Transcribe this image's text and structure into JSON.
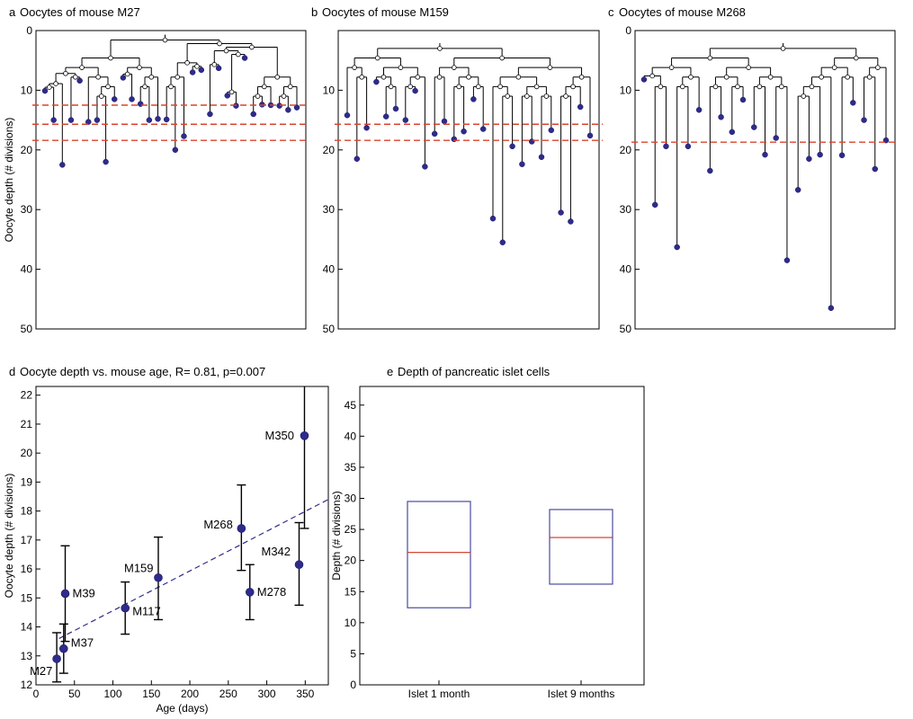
{
  "colors": {
    "dot": "#2e2b8a",
    "dot_edge": "#1c1a6b",
    "cyan": "#2aa6d6",
    "threshold": "#d9442b",
    "fit_line": "#2e2b8a",
    "box_edge": "#4a4aa0",
    "median": "#d0301e"
  },
  "chart_data": [
    {
      "panel": "a",
      "type": "tree",
      "letter": "a",
      "title": "Oocytes of mouse M27",
      "ylabel": "Oocyte depth (# divisions)",
      "ylim": [
        0,
        50
      ],
      "yticks": [
        "0",
        "10",
        "20",
        "30",
        "40",
        "50"
      ],
      "thresholds": [
        12.5,
        15.7,
        18.4
      ],
      "leaf_depths": [
        10.1,
        15.0,
        22.5,
        15.0,
        8.4,
        15.3,
        15.0,
        22.0,
        11.5,
        7.9,
        11.5,
        12.3,
        15.0,
        14.8,
        14.9,
        20.0,
        17.7,
        7.0,
        6.6,
        14.0,
        6.3,
        10.9,
        12.6,
        4.6,
        14.0,
        12.4,
        12.5,
        12.6,
        13.3,
        12.9
      ]
    },
    {
      "panel": "b",
      "type": "tree",
      "letter": "b",
      "title": "Oocytes of mouse M159",
      "ylim": [
        0,
        50
      ],
      "yticks": [
        "10",
        "20",
        "30",
        "40",
        "50"
      ],
      "thresholds": [
        15.7,
        18.4
      ],
      "leaf_depths": [
        14.2,
        21.5,
        16.3,
        8.6,
        14.4,
        13.1,
        15.0,
        10.1,
        22.8,
        17.3,
        15.2,
        18.2,
        16.9,
        11.5,
        16.5,
        31.5,
        35.5,
        19.4,
        22.4,
        18.6,
        21.2,
        16.7,
        30.5,
        32.0,
        12.8,
        17.6
      ]
    },
    {
      "panel": "c",
      "type": "tree",
      "letter": "c",
      "title": "Oocytes of mouse M268",
      "ylim": [
        0,
        50
      ],
      "yticks": [
        "0",
        "10",
        "20",
        "30",
        "40",
        "50"
      ],
      "thresholds": [
        18.7
      ],
      "leaf_depths": [
        8.2,
        29.2,
        19.4,
        36.3,
        19.4,
        13.3,
        23.5,
        14.5,
        17.0,
        11.6,
        16.2,
        20.8,
        18.0,
        38.5,
        26.7,
        21.5,
        20.8,
        46.5,
        20.9,
        12.1,
        15.0,
        23.2,
        18.4
      ]
    },
    {
      "panel": "d",
      "type": "scatter",
      "letter": "d",
      "title": "Oocyte depth vs. mouse age, R= 0.81, p=0.007",
      "xlabel": "Age (days)",
      "ylabel": "Oocyte depth (# divisions)",
      "xlim": [
        0,
        380
      ],
      "ylim": [
        12,
        22.3
      ],
      "xticks": [
        "0",
        "50",
        "100",
        "150",
        "200",
        "250",
        "300",
        "350"
      ],
      "yticks": [
        "12",
        "13",
        "14",
        "15",
        "16",
        "17",
        "18",
        "19",
        "20",
        "21",
        "22"
      ],
      "fit_line": [
        [
          30,
          13.6
        ],
        [
          380,
          18.4
        ]
      ],
      "points": [
        {
          "label": "M27",
          "x": 27,
          "y": 12.9,
          "lo": 12.1,
          "hi": 13.8
        },
        {
          "label": "M37",
          "x": 36,
          "y": 13.25,
          "lo": 12.4,
          "hi": 14.1
        },
        {
          "label": "M39",
          "x": 38,
          "y": 15.15,
          "lo": 13.5,
          "hi": 16.8
        },
        {
          "label": "M117",
          "x": 116,
          "y": 14.65,
          "lo": 13.75,
          "hi": 15.55
        },
        {
          "label": "M159",
          "x": 159,
          "y": 15.7,
          "lo": 14.25,
          "hi": 17.1
        },
        {
          "label": "M268",
          "x": 267,
          "y": 17.4,
          "lo": 15.95,
          "hi": 18.9
        },
        {
          "label": "M278",
          "x": 278,
          "y": 15.2,
          "lo": 14.25,
          "hi": 16.15
        },
        {
          "label": "M342",
          "x": 342,
          "y": 16.15,
          "lo": 14.75,
          "hi": 17.6
        },
        {
          "label": "M350",
          "x": 349,
          "y": 20.6,
          "lo": 17.4,
          "hi": 23.0
        }
      ]
    },
    {
      "panel": "e",
      "type": "box",
      "letter": "e",
      "title": "Depth of pancreatic islet cells",
      "ylabel": "Depth (# divisions)",
      "ylim": [
        0,
        48
      ],
      "yticks": [
        "0",
        "5",
        "10",
        "15",
        "20",
        "25",
        "30",
        "35",
        "40",
        "45"
      ],
      "categories": [
        "Islet 1 month",
        "Islet 9 months"
      ],
      "boxes": [
        {
          "low": 12.4,
          "median": 21.3,
          "high": 29.5
        },
        {
          "low": 16.2,
          "median": 23.7,
          "high": 28.2
        }
      ]
    }
  ]
}
